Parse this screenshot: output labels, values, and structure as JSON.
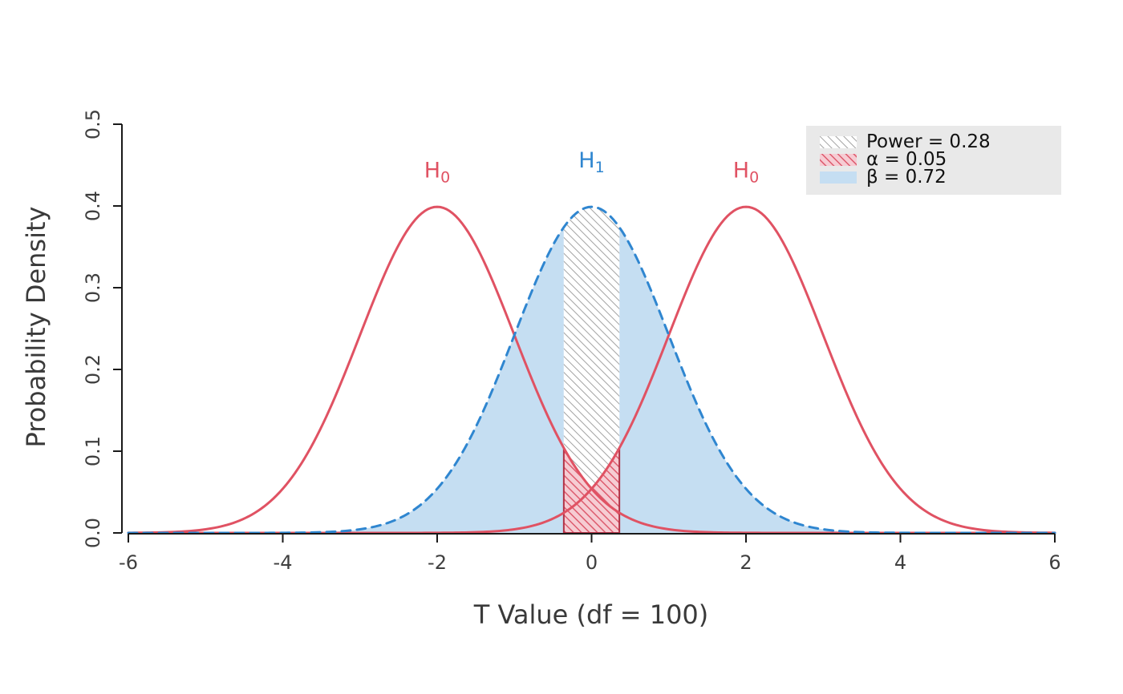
{
  "chart_data": {
    "type": "area",
    "title": "",
    "xlabel": "T Value (df = 100)",
    "ylabel": "Probability Density",
    "xlim": [
      -6,
      6
    ],
    "ylim": [
      0,
      0.5
    ],
    "grid": false,
    "x_ticks": [
      "-6",
      "-4",
      "-2",
      "0",
      "2",
      "4",
      "6"
    ],
    "x_tick_values": [
      -6,
      -4,
      -2,
      0,
      2,
      4,
      6
    ],
    "y_ticks": [
      "0.0",
      "0.1",
      "0.2",
      "0.3",
      "0.4",
      "0.5"
    ],
    "y_tick_values": [
      0,
      0.1,
      0.2,
      0.3,
      0.4,
      0.5
    ],
    "distributions": [
      {
        "name": "H0-left",
        "hypothesis": "H0",
        "mean": -2,
        "sd": 1,
        "line": "solid",
        "color": "#e05263"
      },
      {
        "name": "H1",
        "hypothesis": "H1",
        "mean": 0,
        "sd": 1,
        "line": "dashed",
        "color": "#2f86d0"
      },
      {
        "name": "H0-right",
        "hypothesis": "H0",
        "mean": 2,
        "sd": 1,
        "line": "solid",
        "color": "#e05263"
      }
    ],
    "critical_region": [
      -0.36,
      0.36
    ],
    "regions": [
      {
        "name": "power",
        "value": 0.28,
        "style": "gray-hatch"
      },
      {
        "name": "alpha",
        "value": 0.05,
        "style": "red-hatch"
      },
      {
        "name": "beta",
        "value": 0.72,
        "style": "blue-fill"
      }
    ],
    "annotations": [
      {
        "base": "H",
        "sub": "0",
        "x": -2,
        "y": 0.435,
        "color": "#e05263"
      },
      {
        "base": "H",
        "sub": "1",
        "x": 0,
        "y": 0.447,
        "color": "#2f86d0"
      },
      {
        "base": "H",
        "sub": "0",
        "x": 2,
        "y": 0.435,
        "color": "#e05263"
      }
    ],
    "legend": {
      "position": "top-right",
      "bg": "#e9e9e9",
      "items": [
        {
          "label": "Power = 0.28",
          "swatch": "gray-hatch"
        },
        {
          "label": "α = 0.05",
          "swatch": "pink-hatch"
        },
        {
          "label": "β = 0.72",
          "swatch": "blue"
        }
      ]
    },
    "colors": {
      "h0_curve": "#e05263",
      "h1_curve": "#2f86d0",
      "beta_fill": "#c5def2",
      "gray_hatch_line": "#a3a3a3",
      "alpha_fill": "#f6ccd3",
      "alpha_hatch_line": "#dd5b6e",
      "alpha_border": "#b13246",
      "axis": "#1a1a1a",
      "tick_label": "#3f3f3f",
      "axis_title": "#3a3a3a",
      "legend_text": "#111111"
    }
  }
}
